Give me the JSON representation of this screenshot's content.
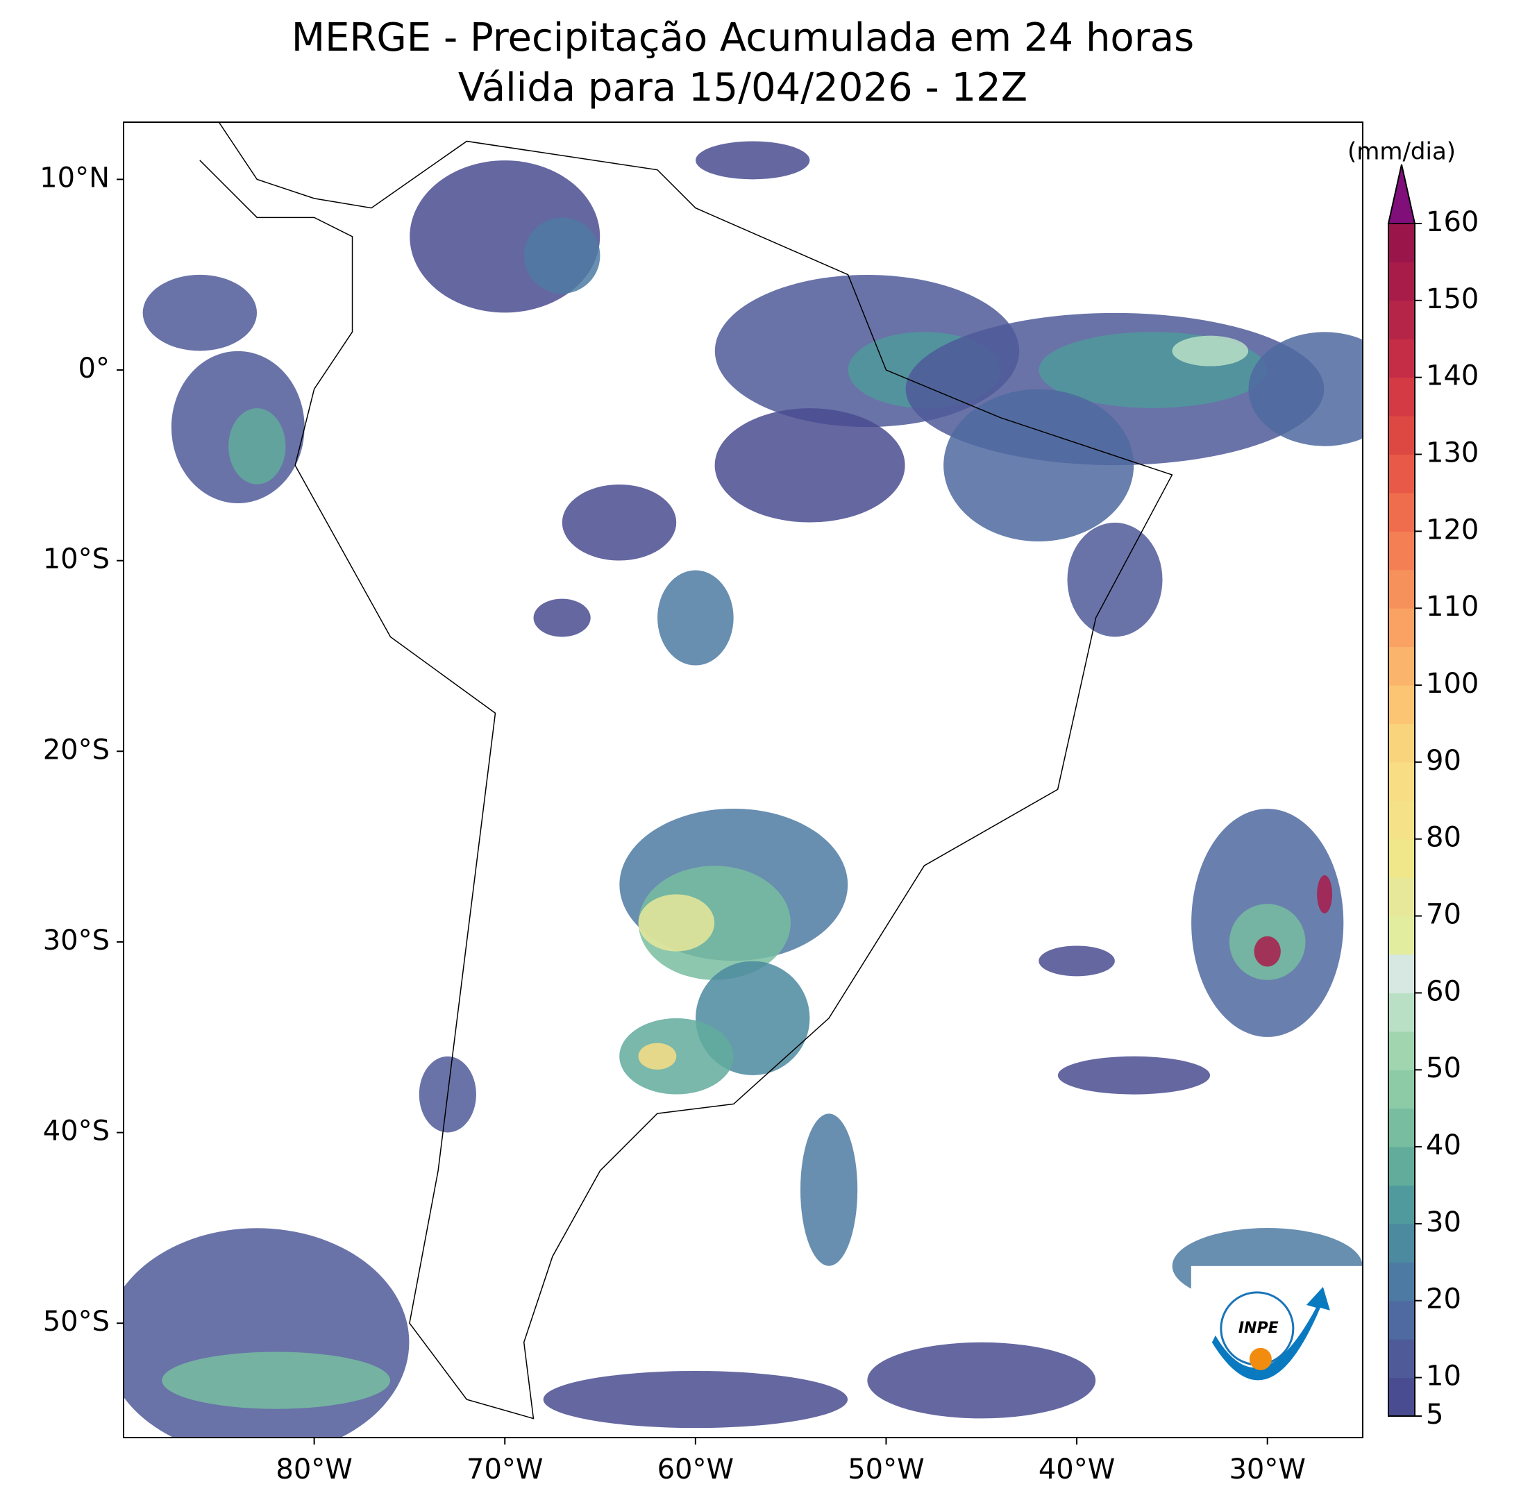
{
  "title": "MERGE - Precipitação Acumulada em 24 horas",
  "subtitle": "Válida para 15/04/2026 - 12Z",
  "map": {
    "xlim": [
      -90,
      -25
    ],
    "ylim": [
      -56,
      13
    ],
    "xticks": [
      {
        "value": -80,
        "label": "80°W"
      },
      {
        "value": -70,
        "label": "70°W"
      },
      {
        "value": -60,
        "label": "60°W"
      },
      {
        "value": -50,
        "label": "50°W"
      },
      {
        "value": -40,
        "label": "40°W"
      },
      {
        "value": -30,
        "label": "30°W"
      }
    ],
    "yticks": [
      {
        "value": 10,
        "label": "10°N"
      },
      {
        "value": 0,
        "label": "0°"
      },
      {
        "value": -10,
        "label": "10°S"
      },
      {
        "value": -20,
        "label": "20°S"
      },
      {
        "value": -30,
        "label": "30°S"
      },
      {
        "value": -40,
        "label": "40°S"
      },
      {
        "value": -50,
        "label": "50°S"
      }
    ]
  },
  "colorbar": {
    "unit": "(mm/dia)",
    "lim": [
      5,
      160
    ],
    "ticks": [
      5,
      10,
      20,
      30,
      40,
      50,
      60,
      70,
      80,
      90,
      100,
      110,
      120,
      130,
      140,
      150,
      160
    ],
    "colors": [
      "#4a4c91",
      "#4f5a99",
      "#4f6aa0",
      "#4d7aa2",
      "#4b8a9f",
      "#50999c",
      "#62ac9c",
      "#78bda0",
      "#8ccba6",
      "#a0d5b0",
      "#b9e0c5",
      "#d6e8e1",
      "#e2eda0",
      "#e8e89a",
      "#f0e68a",
      "#f4e188",
      "#f8dd85",
      "#fad47c",
      "#fbc574",
      "#fbb46c",
      "#f9a263",
      "#f7915c",
      "#f47f55",
      "#ef6c4d",
      "#e85a47",
      "#de4843",
      "#d33a44",
      "#c52d46",
      "#b52548",
      "#a81c4a",
      "#9a164a"
    ],
    "over_color": "#800f7a"
  },
  "logo_text": "INPE"
}
